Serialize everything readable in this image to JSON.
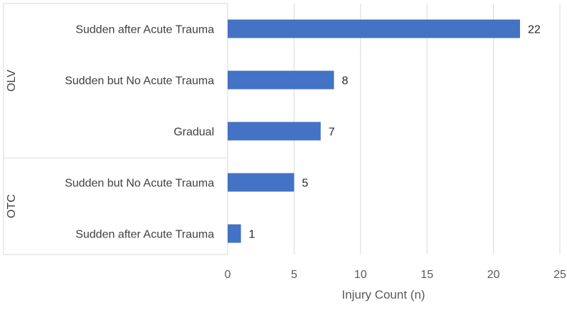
{
  "chart_data": {
    "type": "bar",
    "orientation": "horizontal",
    "groups": [
      {
        "name": "OLV",
        "categories": [
          "Sudden after Acute Trauma",
          "Sudden but No Acute Trauma",
          "Gradual"
        ],
        "values": [
          22,
          8,
          7
        ]
      },
      {
        "name": "OTC",
        "categories": [
          "Sudden but No Acute Trauma",
          "Sudden after Acute Trauma"
        ],
        "values": [
          5,
          1
        ]
      }
    ],
    "xlabel": "Injury Count (n)",
    "ylabel": "",
    "xlim": [
      0,
      25
    ],
    "xticks": [
      0,
      5,
      10,
      15,
      20,
      25
    ],
    "grid": true,
    "data_labels": true,
    "bar_color": "#4472C4",
    "grid_color": "#D9D9D9"
  }
}
